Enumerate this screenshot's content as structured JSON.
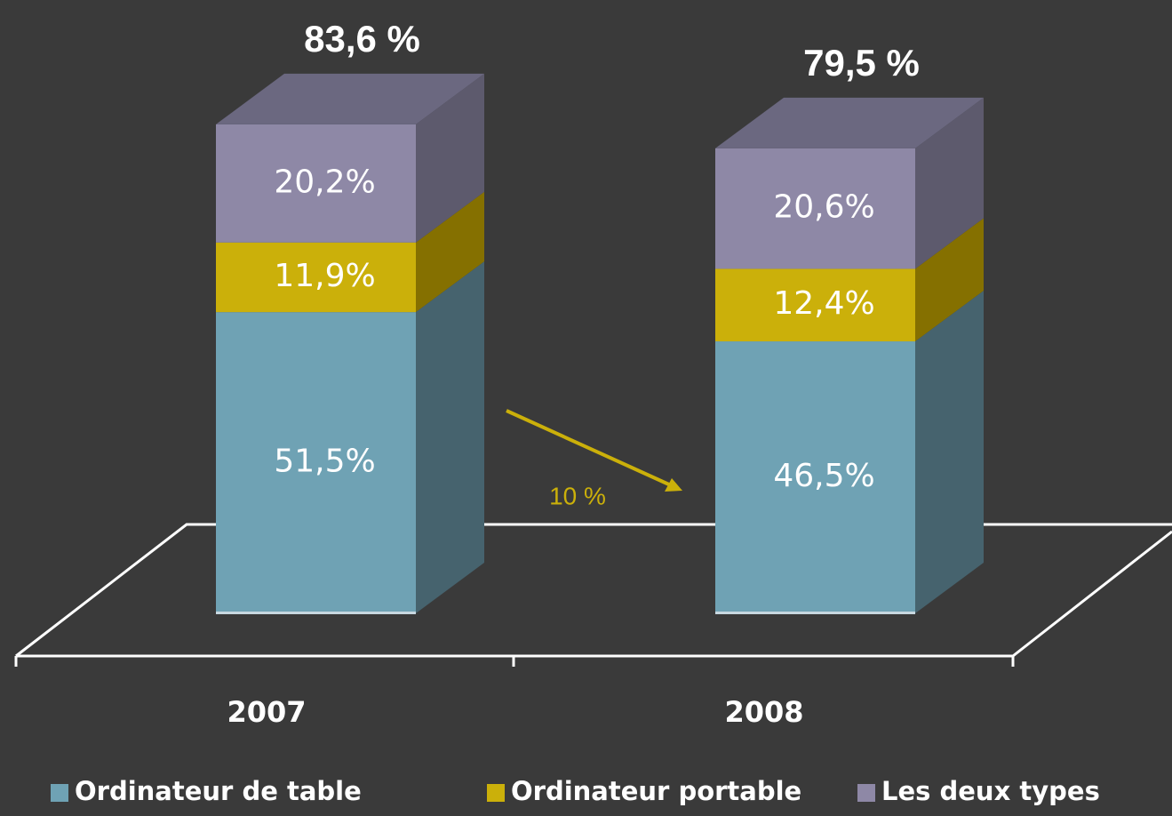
{
  "chart_data": {
    "type": "bar",
    "stacked": true,
    "categories": [
      "2007",
      "2008"
    ],
    "series": [
      {
        "name": "Ordinateur de table",
        "color": "#6fa2b4",
        "side_color": "#46636e",
        "values": [
          51.5,
          46.5
        ],
        "value_labels": [
          "51,5%",
          "46,5%"
        ]
      },
      {
        "name": "Ordinateur portable",
        "color": "#cbb00a",
        "side_color": "#857000",
        "values": [
          11.9,
          12.4
        ],
        "value_labels": [
          "11,9%",
          "12,4%"
        ]
      },
      {
        "name": "Les deux types",
        "color": "#8e88a6",
        "side_color": "#5d5a6d",
        "values": [
          20.2,
          20.6
        ],
        "value_labels": [
          "20,2%",
          "20,6%"
        ]
      }
    ],
    "totals": [
      83.6,
      79.5
    ],
    "total_labels": [
      "83,6 %",
      "79,5 %"
    ],
    "annotation": "10 %",
    "top_color": "#6b6880"
  }
}
